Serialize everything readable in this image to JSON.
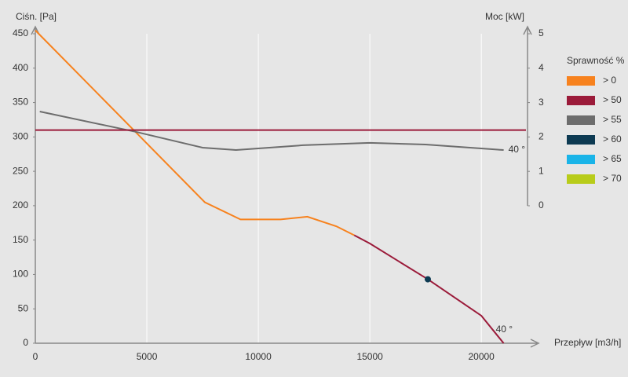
{
  "chart_data": {
    "type": "line",
    "ylabel": "Ciśn. [Pa]",
    "y2label": "Moc [kW]",
    "xlabel": "Przepływ [m3/h]",
    "xlim": [
      0,
      22000
    ],
    "xticks": [
      0,
      5000,
      10000,
      15000,
      20000
    ],
    "ylim": [
      0,
      450
    ],
    "yticks": [
      0,
      50,
      100,
      150,
      200,
      250,
      300,
      350,
      400,
      450
    ],
    "y2lim": [
      0,
      5
    ],
    "y2ticks": [
      0,
      1,
      2,
      3,
      4,
      5
    ],
    "grid": true,
    "series": [
      {
        "color": "#f7821e",
        "x": [
          0,
          4500,
          7600,
          9200,
          11000,
          12200,
          13500,
          14300
        ],
        "values": [
          455,
          307,
          205,
          180,
          180,
          184,
          170,
          157
        ]
      },
      {
        "color": "#9b1b3a",
        "label": "40 °",
        "x": [
          14300,
          15000,
          17600,
          20000,
          21000
        ],
        "values": [
          157,
          145,
          93,
          40,
          0
        ]
      },
      {
        "color": "#6d6d6d",
        "axis": "y2",
        "label": "40 °",
        "x": [
          200,
          4500,
          7500,
          9000,
          12000,
          15000,
          17500,
          21000
        ],
        "values": [
          2.74,
          2.15,
          1.69,
          1.62,
          1.76,
          1.83,
          1.78,
          1.62
        ]
      },
      {
        "color": "#9b1b3a",
        "x": [
          0,
          22000
        ],
        "values": [
          310,
          310
        ]
      }
    ],
    "markers": [
      {
        "x": 17600,
        "y": 93,
        "color": "#0d3a52"
      }
    ],
    "legend": {
      "title": "Sprawność %",
      "items": [
        {
          "label": "> 0",
          "color": "#f7821e"
        },
        {
          "label": "> 50",
          "color": "#9b1b3a"
        },
        {
          "label": "> 55",
          "color": "#6d6d6d"
        },
        {
          "label": "> 60",
          "color": "#0d3a52"
        },
        {
          "label": "> 65",
          "color": "#1ab4e8"
        },
        {
          "label": "> 70",
          "color": "#b8cc1a"
        }
      ]
    }
  }
}
